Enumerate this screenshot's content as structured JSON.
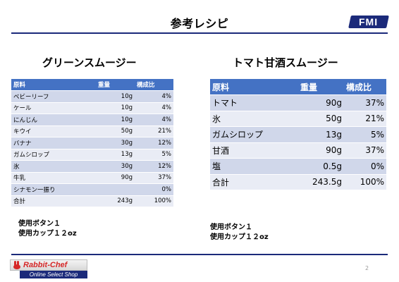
{
  "header": {
    "title": "参考レシピ",
    "logo_text": "FMI"
  },
  "green_smoothie": {
    "title": "グリーンスムージー",
    "columns": [
      "原料",
      "重量",
      "構成比"
    ],
    "rows": [
      [
        "ベビーリーフ",
        "10g",
        "4%"
      ],
      [
        "ケール",
        "10g",
        "4%"
      ],
      [
        "にんじん",
        "10g",
        "4%"
      ],
      [
        "キウイ",
        "50g",
        "21%"
      ],
      [
        "バナナ",
        "30g",
        "12%"
      ],
      [
        "ガムシロップ",
        "13g",
        "5%"
      ],
      [
        "氷",
        "30g",
        "12%"
      ],
      [
        "牛乳",
        "90g",
        "37%"
      ],
      [
        "シナモン一振り",
        "",
        "0%"
      ],
      [
        "合計",
        "243g",
        "100%"
      ]
    ],
    "note_line1": "使用ボタン１",
    "note_line2": "使用カップ１２oz"
  },
  "tomato_smoothie": {
    "title": "トマト甘酒スムージー",
    "columns": [
      "原料",
      "重量",
      "構成比"
    ],
    "rows": [
      [
        "トマト",
        "90g",
        "37%"
      ],
      [
        "氷",
        "50g",
        "21%"
      ],
      [
        "ガムシロップ",
        "13g",
        "5%"
      ],
      [
        "甘酒",
        "90g",
        "37%"
      ],
      [
        "塩",
        "0.5g",
        "0%"
      ],
      [
        "合計",
        "243.5g",
        "100%"
      ]
    ],
    "note_line1": "使用ボタン１",
    "note_line2": "使用カップ１２oz"
  },
  "footer": {
    "brand_name": "Rabbit-Chef",
    "brand_tagline": "Online Select Shop",
    "page_number": "2",
    "brand_icon": "rabbit-icon"
  },
  "colors": {
    "header_fill": "#4472c4",
    "row_odd": "#d0d7ea",
    "row_even": "#e9ecf5",
    "rule": "#1b2a7a",
    "brand_red": "#d62828"
  }
}
